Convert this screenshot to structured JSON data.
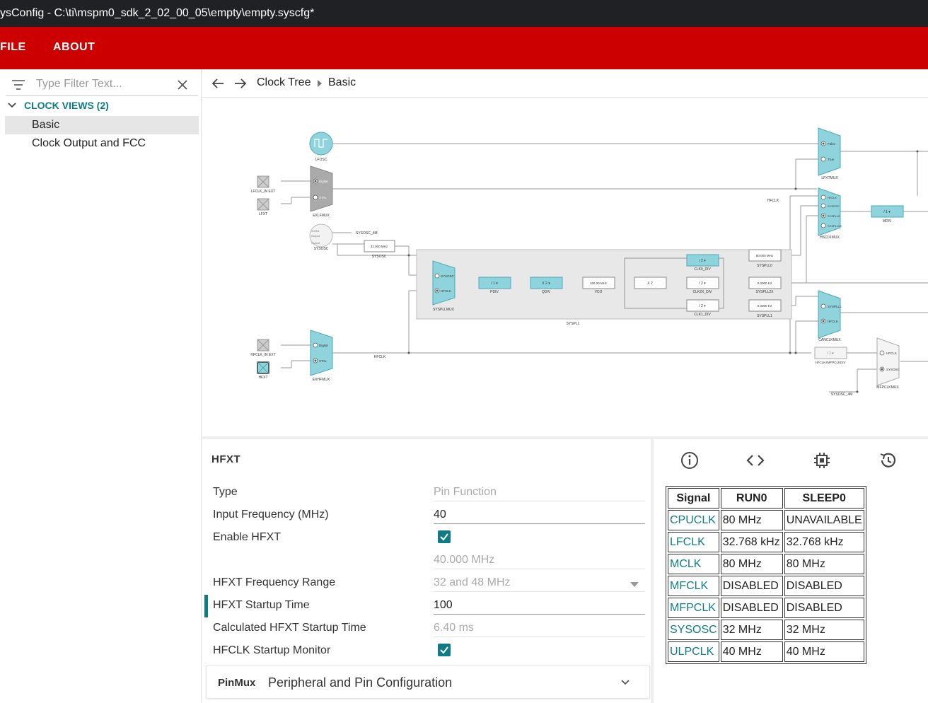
{
  "window": {
    "title": "ysConfig - C:\\ti\\mspm0_sdk_2_02_00_05\\empty\\empty.syscfg*"
  },
  "menu": {
    "file": "FILE",
    "about": "ABOUT"
  },
  "sidebar": {
    "filter_placeholder": "Type Filter Text...",
    "group_label": "CLOCK VIEWS (2)",
    "items": [
      {
        "label": "Basic",
        "selected": true
      },
      {
        "label": "Clock Output and FCC",
        "selected": false
      }
    ]
  },
  "breadcrumb": {
    "root": "Clock Tree",
    "current": "Basic"
  },
  "diagram": {
    "labels": {
      "lfosc": "LFOSC",
      "lfclk_in_ext": "LFCLK_IN EXT",
      "lfxt": "LFXT",
      "exlfmux": "EXLFMUX",
      "exlfmux_opt1": "Digital",
      "exlfmux_opt2": "XTAL",
      "sysosc": "SYSOSC",
      "sysosc_inner1": "4 MHz",
      "sysosc_inner2": "Output",
      "sysosc_inner3": "Output",
      "sysosc_4m": "SYSOSC_4M",
      "sysosc_box": "32.000 MHz",
      "sysosc_box_lbl": "SYSOSC",
      "syspllmux": "SYSPLLMUX",
      "syspllmux_opt1": "SYSOSC",
      "syspllmux_opt2": "HFCLK",
      "pdiv_val": "/ 1 ▾",
      "pdiv": "PDIV",
      "qdiv_val": "X 2 ▾",
      "qdiv": "QDIV",
      "vco_val": "160.00 MHz",
      "vco": "VCO",
      "x2": "X 2",
      "clk0div_val": "/ 2 ▾",
      "clk0div": "CLK0_DIV",
      "clk2x_val": "/ 2 ▾",
      "clk2x": "CLK2X_DIV",
      "clk1div_val": "/ 2 ▾",
      "clk1div": "CLK1_DIV",
      "syspll": "SYSPLL",
      "syspll0_val": "80.000 MHz",
      "syspll0": "SYSPLL0",
      "syspll2x_val": "0.0000 Hz",
      "syspll2x": "SYSPLL2X",
      "syspll1_val": "0.0000 Hz",
      "syspll1": "SYSPLL1",
      "hfclk_in_ext": "HFCLK_IN EXT",
      "hfxt": "HFXT",
      "exhfmux": "EXHFMUX",
      "exhfmux_opt1": "Digital",
      "exhfmux_opt2": "XTAL",
      "hfclk": "HFCLK",
      "lfxtmux": "LFXTMUX",
      "lfxtmux_opt1": "False",
      "lfxtmux_opt2": "True",
      "hsclkmux": "HSCLKMUX",
      "hsclkmux_opt1": "HFCLK",
      "hsclkmux_opt2": "SYSOSC",
      "hsclkmux_opt3": "SYSPLL0",
      "hsclkmux_opt4": "SYSPLL2X",
      "hfclk2": "HFCLK",
      "mdiv_val": "/ 1 ▾",
      "mdiv": "MDIV",
      "canclkmux": "CANCLKMUX",
      "canclkmux_opt1": "SYSPLL1",
      "canclkmux_opt2": "HFCLK",
      "hfclk4mfpclkdiv_val": "/ 1 ▾",
      "hfclk4mfpclkdiv": "HFCLK4MFPCLKDIV",
      "mfpclkmux": "MFPCLKMUX",
      "mfpclkmux_opt1": "HFCLK",
      "mfpclkmux_opt2": "SYSOSC",
      "sysosc_4m_b": "SYSOSC_4M"
    }
  },
  "properties": {
    "section_title": "HFXT",
    "rows": [
      {
        "label": "Type",
        "value": "Pin Function"
      },
      {
        "label": "Input Frequency (MHz)",
        "value": "40"
      },
      {
        "label": "Enable HFXT",
        "checked": true
      },
      {
        "label": "",
        "value": "40.000 MHz"
      },
      {
        "label": "HFXT Frequency Range",
        "value": "32 and 48 MHz"
      },
      {
        "label": "HFXT Startup Time",
        "value": "100"
      },
      {
        "label": "Calculated HFXT Startup Time",
        "value": "6.40 ms"
      },
      {
        "label": "HFCLK Startup Monitor",
        "checked": true
      }
    ],
    "pinmux": {
      "tag": "PinMux",
      "title": "Peripheral and Pin Configuration"
    }
  },
  "signal_table": {
    "headers": [
      "Signal",
      "RUN0",
      "SLEEP0"
    ],
    "rows": [
      [
        "CPUCLK",
        "80 MHz",
        "UNAVAILABLE"
      ],
      [
        "LFCLK",
        "32.768 kHz",
        "32.768 kHz"
      ],
      [
        "MCLK",
        "80 MHz",
        "80 MHz"
      ],
      [
        "MFCLK",
        "DISABLED",
        "DISABLED"
      ],
      [
        "MFPCLK",
        "DISABLED",
        "DISABLED"
      ],
      [
        "SYSOSC",
        "32 MHz",
        "32 MHz"
      ],
      [
        "ULPCLK",
        "40 MHz",
        "40 MHz"
      ]
    ]
  },
  "colors": {
    "accent": "#0e7c86",
    "menubar": "#cc0000",
    "titlebar": "#202124",
    "block": "#8fd3dd"
  }
}
